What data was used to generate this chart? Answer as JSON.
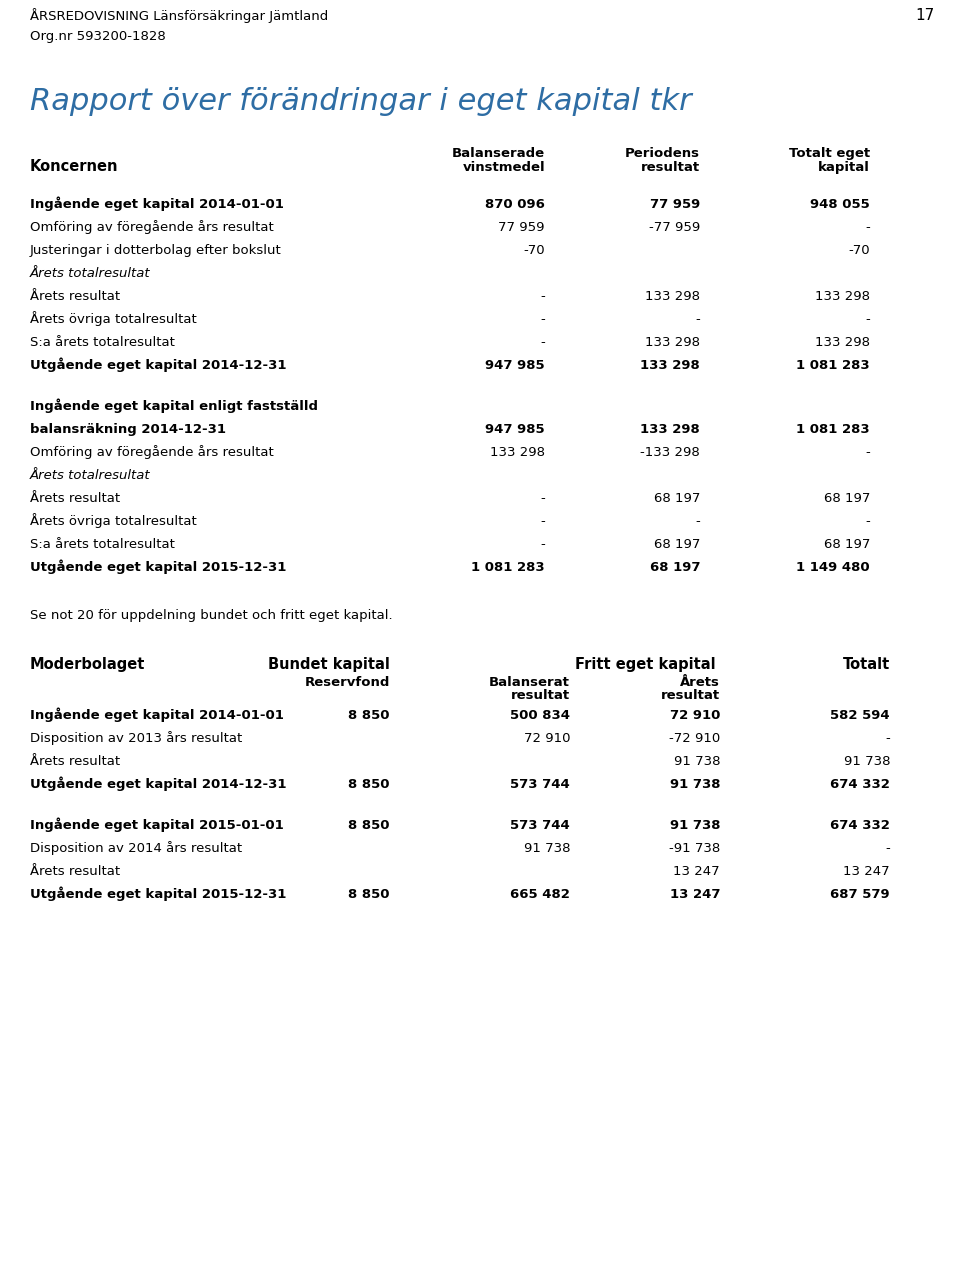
{
  "header_line1": "ÅRSREDOVISNING Länsförsäkringar Jämtland",
  "header_page": "17",
  "header_line2": "Org.nr 593200-1828",
  "main_title": "Rapport över förändringar i eget kapital tkr",
  "koncernen_label": "Koncernen",
  "bg_color": "#ffffff",
  "text_color": "#000000",
  "title_color": "#2e6da4",
  "koncernen_rows": [
    {
      "label": "Ingående eget kapital 2014-01-01",
      "bold": true,
      "italic": false,
      "extra_before": 8,
      "vals": [
        "870 096",
        "77 959",
        "948 055"
      ],
      "vals_on_next_line": false
    },
    {
      "label": "Omföring av föregående års resultat",
      "bold": false,
      "italic": false,
      "extra_before": 0,
      "vals": [
        "77 959",
        "-77 959",
        "-"
      ],
      "vals_on_next_line": false
    },
    {
      "label": "Justeringar i dotterbolag efter bokslut",
      "bold": false,
      "italic": false,
      "extra_before": 0,
      "vals": [
        "-70",
        "",
        "-70"
      ],
      "vals_on_next_line": false
    },
    {
      "label": "Årets totalresultat",
      "bold": false,
      "italic": true,
      "extra_before": 0,
      "vals": [
        "",
        "",
        ""
      ],
      "vals_on_next_line": false
    },
    {
      "label": "Årets resultat",
      "bold": false,
      "italic": false,
      "extra_before": 0,
      "vals": [
        "-",
        "133 298",
        "133 298"
      ],
      "vals_on_next_line": false
    },
    {
      "label": "Årets övriga totalresultat",
      "bold": false,
      "italic": false,
      "extra_before": 0,
      "vals": [
        "-",
        "-",
        "-"
      ],
      "vals_on_next_line": false
    },
    {
      "label": "S:a årets totalresultat",
      "bold": false,
      "italic": false,
      "extra_before": 0,
      "vals": [
        "-",
        "133 298",
        "133 298"
      ],
      "vals_on_next_line": false
    },
    {
      "label": "Utgående eget kapital 2014-12-31",
      "bold": true,
      "italic": false,
      "extra_before": 0,
      "vals": [
        "947 985",
        "133 298",
        "1 081 283"
      ],
      "vals_on_next_line": false
    },
    {
      "label": "Ingående eget kapital enligt fastställd",
      "bold": true,
      "italic": false,
      "extra_before": 18,
      "vals": [
        "",
        "",
        ""
      ],
      "vals_on_next_line": false
    },
    {
      "label": "balansräkning 2014-12-31",
      "bold": true,
      "italic": false,
      "extra_before": 0,
      "vals": [
        "947 985",
        "133 298",
        "1 081 283"
      ],
      "vals_on_next_line": false
    },
    {
      "label": "Omföring av föregående års resultat",
      "bold": false,
      "italic": false,
      "extra_before": 0,
      "vals": [
        "133 298",
        "-133 298",
        "-"
      ],
      "vals_on_next_line": false
    },
    {
      "label": "Årets totalresultat",
      "bold": false,
      "italic": true,
      "extra_before": 0,
      "vals": [
        "",
        "",
        ""
      ],
      "vals_on_next_line": false
    },
    {
      "label": "Årets resultat",
      "bold": false,
      "italic": false,
      "extra_before": 0,
      "vals": [
        "-",
        "68 197",
        "68 197"
      ],
      "vals_on_next_line": false
    },
    {
      "label": "Årets övriga totalresultat",
      "bold": false,
      "italic": false,
      "extra_before": 0,
      "vals": [
        "-",
        "-",
        "-"
      ],
      "vals_on_next_line": false
    },
    {
      "label": "S:a årets totalresultat",
      "bold": false,
      "italic": false,
      "extra_before": 0,
      "vals": [
        "-",
        "68 197",
        "68 197"
      ],
      "vals_on_next_line": false
    },
    {
      "label": "Utgående eget kapital 2015-12-31",
      "bold": true,
      "italic": false,
      "extra_before": 0,
      "vals": [
        "1 081 283",
        "68 197",
        "1 149 480"
      ],
      "vals_on_next_line": false
    }
  ],
  "note_text": "Se not 20 för uppdelning bundet och fritt eget kapital.",
  "moderbolaget_label": "Moderbolaget",
  "moderbolaget_rows": [
    {
      "label": "Ingående eget kapital 2014-01-01",
      "bold": true,
      "italic": false,
      "extra_before": 0,
      "vals": [
        "8 850",
        "500 834",
        "72 910",
        "582 594"
      ]
    },
    {
      "label": "Disposition av 2013 års resultat",
      "bold": false,
      "italic": false,
      "extra_before": 0,
      "vals": [
        "",
        "72 910",
        "-72 910",
        "-"
      ]
    },
    {
      "label": "Årets resultat",
      "bold": false,
      "italic": false,
      "extra_before": 0,
      "vals": [
        "",
        "",
        "91 738",
        "91 738"
      ]
    },
    {
      "label": "Utgående eget kapital 2014-12-31",
      "bold": true,
      "italic": false,
      "extra_before": 0,
      "vals": [
        "8 850",
        "573 744",
        "91 738",
        "674 332"
      ]
    },
    {
      "label": "Ingående eget kapital 2015-01-01",
      "bold": true,
      "italic": false,
      "extra_before": 18,
      "vals": [
        "8 850",
        "573 744",
        "91 738",
        "674 332"
      ]
    },
    {
      "label": "Disposition av 2014 års resultat",
      "bold": false,
      "italic": false,
      "extra_before": 0,
      "vals": [
        "",
        "91 738",
        "-91 738",
        "-"
      ]
    },
    {
      "label": "Årets resultat",
      "bold": false,
      "italic": false,
      "extra_before": 0,
      "vals": [
        "",
        "",
        "13 247",
        "13 247"
      ]
    },
    {
      "label": "Utgående eget kapital 2015-12-31",
      "bold": true,
      "italic": false,
      "extra_before": 0,
      "vals": [
        "8 850",
        "665 482",
        "13 247",
        "687 579"
      ]
    }
  ]
}
